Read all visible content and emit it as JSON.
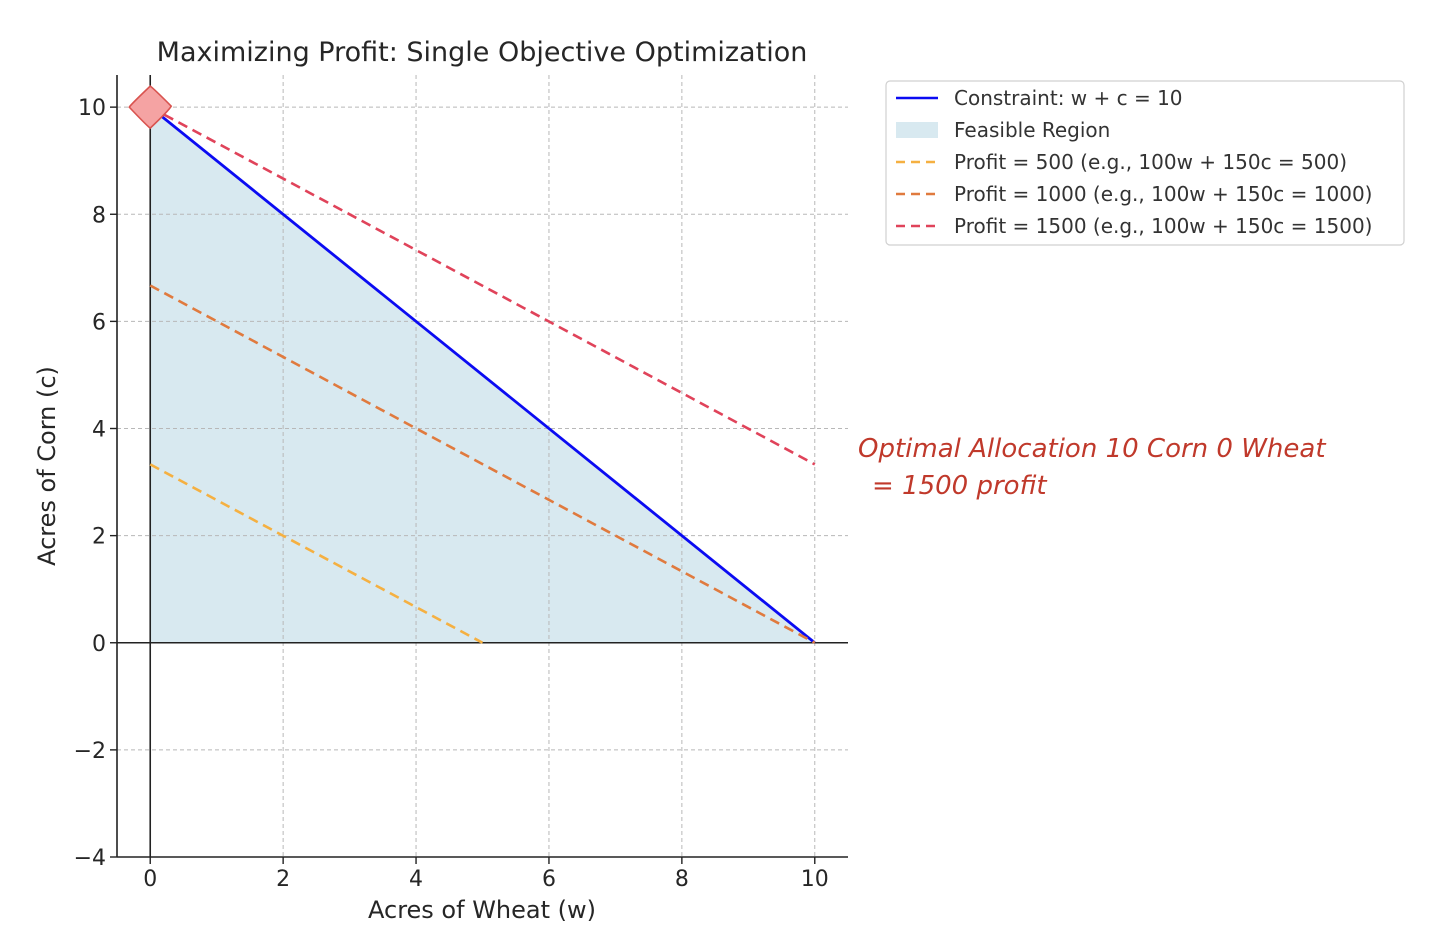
{
  "chart_data": {
    "type": "line",
    "title": "Maximizing Profit: Single Objective Optimization",
    "xlabel": "Acres of Wheat (w)",
    "ylabel": "Acres of Corn (c)",
    "xlim": [
      -0.5,
      10.5
    ],
    "ylim": [
      -4,
      10.6
    ],
    "xticks": [
      0,
      2,
      4,
      6,
      8,
      10
    ],
    "yticks": [
      -4,
      -2,
      0,
      2,
      4,
      6,
      8,
      10
    ],
    "xtick_labels": [
      "0",
      "2",
      "4",
      "6",
      "8",
      "10"
    ],
    "ytick_labels": [
      "−4",
      "−2",
      "0",
      "2",
      "4",
      "6",
      "8",
      "10"
    ],
    "grid": true,
    "legend_position": "outside-top-right",
    "series": [
      {
        "name": "Constraint: w + c = 10",
        "kind": "line",
        "style": "solid",
        "color": "#0b0bf2",
        "x": [
          0,
          10
        ],
        "y": [
          10,
          0
        ]
      },
      {
        "name": "Feasible Region",
        "kind": "area",
        "color": "#d8e9f0",
        "x": [
          0,
          0,
          10
        ],
        "y": [
          0,
          10,
          0
        ]
      },
      {
        "name": "Profit = 500 (e.g., 100w + 150c = 500)",
        "kind": "line",
        "style": "dashed",
        "color": "#f5b041",
        "x": [
          0,
          5
        ],
        "y": [
          3.33,
          0
        ]
      },
      {
        "name": "Profit = 1000 (e.g., 100w + 150c = 1000)",
        "kind": "line",
        "style": "dashed",
        "color": "#e07a3e",
        "x": [
          0,
          10
        ],
        "y": [
          6.67,
          0
        ]
      },
      {
        "name": "Profit = 1500 (e.g., 100w + 150c = 1500)",
        "kind": "line",
        "style": "dashed",
        "color": "#e0435a",
        "x": [
          0,
          10
        ],
        "y": [
          10,
          3.33
        ]
      }
    ],
    "optimal_point": {
      "x": 0,
      "y": 10,
      "color": "#f5a3a3",
      "edge_color": "#d9534f"
    },
    "annotation": {
      "line1": "Optimal Allocation 10 Corn 0 Wheat",
      "line2": "= 1500 profit",
      "color": "#c0392b"
    }
  }
}
